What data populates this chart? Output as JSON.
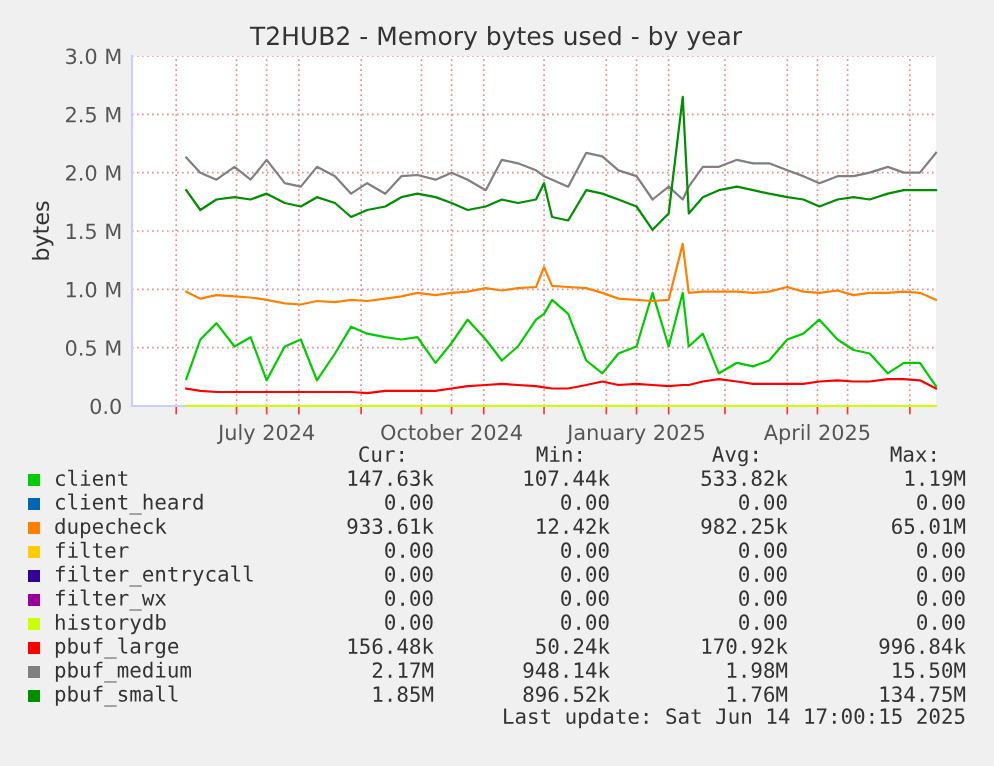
{
  "chart_data": {
    "type": "line",
    "title": "T2HUB2 - Memory bytes used - by year",
    "ylabel": "bytes",
    "x": [
      "2024-06-06",
      "2024-06-13",
      "2024-06-21",
      "2024-06-30",
      "2024-07-08",
      "2024-07-16",
      "2024-07-25",
      "2024-08-02",
      "2024-08-10",
      "2024-08-19",
      "2024-08-27",
      "2024-09-04",
      "2024-09-13",
      "2024-09-21",
      "2024-09-29",
      "2024-10-08",
      "2024-10-16",
      "2024-10-24",
      "2024-11-02",
      "2024-11-10",
      "2024-11-18",
      "2024-11-27",
      "2024-12-01",
      "2024-12-05",
      "2024-12-13",
      "2024-12-22",
      "2024-12-30",
      "2025-01-07",
      "2025-01-16",
      "2025-01-24",
      "2025-02-01",
      "2025-02-08",
      "2025-02-11",
      "2025-02-18",
      "2025-02-26",
      "2025-03-07",
      "2025-03-15",
      "2025-03-23",
      "2025-04-01",
      "2025-04-09",
      "2025-04-17",
      "2025-04-26",
      "2025-05-04",
      "2025-05-12",
      "2025-05-21",
      "2025-05-29",
      "2025-06-06",
      "2025-06-14"
    ],
    "series": [
      {
        "name": "client",
        "color": "#00cc00",
        "values": [
          0.23,
          0.57,
          0.71,
          0.51,
          0.59,
          0.22,
          0.51,
          0.57,
          0.22,
          0.45,
          0.68,
          0.62,
          0.59,
          0.57,
          0.59,
          0.37,
          0.54,
          0.74,
          0.57,
          0.39,
          0.51,
          0.74,
          0.79,
          0.91,
          0.79,
          0.39,
          0.28,
          0.45,
          0.51,
          0.97,
          0.51,
          0.97,
          0.51,
          0.62,
          0.28,
          0.37,
          0.34,
          0.39,
          0.57,
          0.62,
          0.74,
          0.57,
          0.48,
          0.45,
          0.28,
          0.37,
          0.37,
          0.17
        ]
      },
      {
        "name": "client_heard",
        "color": "#0066b3",
        "values": [
          null,
          null,
          null,
          null,
          null,
          null,
          null,
          null,
          null,
          null,
          null,
          null,
          null,
          null,
          null,
          null,
          null,
          null,
          null,
          null,
          null,
          null,
          null,
          null,
          null,
          null,
          null,
          null,
          null,
          null,
          null,
          null,
          null,
          null,
          null,
          null,
          null,
          null,
          null,
          null,
          null,
          null,
          null,
          null,
          null,
          null,
          null,
          null
        ]
      },
      {
        "name": "dupecheck",
        "color": "#ff8000",
        "values": [
          0.98,
          0.92,
          0.95,
          0.94,
          0.93,
          0.91,
          0.88,
          0.87,
          0.9,
          0.89,
          0.91,
          0.9,
          0.92,
          0.94,
          0.97,
          0.95,
          0.97,
          0.98,
          1.01,
          0.99,
          1.01,
          1.02,
          1.19,
          1.03,
          1.02,
          1.01,
          0.97,
          0.92,
          0.91,
          0.9,
          0.91,
          1.39,
          0.97,
          0.98,
          0.98,
          0.98,
          0.97,
          0.98,
          1.02,
          0.98,
          0.97,
          0.99,
          0.95,
          0.97,
          0.97,
          0.98,
          0.97,
          0.91
        ]
      },
      {
        "name": "filter",
        "color": "#ffcc00",
        "values": [
          null,
          null,
          null,
          null,
          null,
          null,
          null,
          null,
          null,
          null,
          null,
          null,
          null,
          null,
          null,
          null,
          null,
          null,
          null,
          null,
          null,
          null,
          null,
          null,
          null,
          null,
          null,
          null,
          null,
          null,
          null,
          null,
          null,
          null,
          null,
          null,
          null,
          null,
          null,
          null,
          null,
          null,
          null,
          null,
          null,
          null,
          null,
          null
        ]
      },
      {
        "name": "filter_entrycall",
        "color": "#330099",
        "values": [
          null,
          null,
          null,
          null,
          null,
          null,
          null,
          null,
          null,
          null,
          null,
          null,
          null,
          null,
          null,
          null,
          null,
          null,
          null,
          null,
          null,
          null,
          null,
          null,
          null,
          null,
          null,
          null,
          null,
          null,
          null,
          null,
          null,
          null,
          null,
          null,
          null,
          null,
          null,
          null,
          null,
          null,
          null,
          null,
          null,
          null,
          null,
          null
        ]
      },
      {
        "name": "filter_wx",
        "color": "#990099",
        "values": [
          null,
          null,
          null,
          null,
          null,
          null,
          null,
          null,
          null,
          null,
          null,
          null,
          null,
          null,
          null,
          null,
          null,
          null,
          null,
          null,
          null,
          null,
          null,
          null,
          null,
          null,
          null,
          null,
          null,
          null,
          null,
          null,
          null,
          null,
          null,
          null,
          null,
          null,
          null,
          null,
          null,
          null,
          null,
          null,
          null,
          null,
          null,
          null
        ]
      },
      {
        "name": "historydb",
        "color": "#ccff00",
        "x": [
          "2024-06-06",
          "2025-06-14"
        ],
        "values": [
          0,
          0
        ]
      },
      {
        "name": "pbuf_large",
        "color": "#ff0000",
        "values": [
          0.15,
          0.13,
          0.12,
          0.12,
          0.12,
          0.12,
          0.12,
          0.12,
          0.12,
          0.12,
          0.12,
          0.11,
          0.13,
          0.13,
          0.13,
          0.13,
          0.15,
          0.17,
          0.18,
          0.19,
          0.18,
          0.17,
          0.16,
          0.15,
          0.15,
          0.18,
          0.21,
          0.18,
          0.19,
          0.18,
          0.17,
          0.18,
          0.18,
          0.21,
          0.23,
          0.21,
          0.19,
          0.19,
          0.19,
          0.19,
          0.21,
          0.22,
          0.21,
          0.21,
          0.23,
          0.23,
          0.22,
          0.15
        ]
      },
      {
        "name": "pbuf_medium",
        "color": "#808080",
        "values": [
          2.13,
          2.0,
          1.94,
          2.05,
          1.94,
          2.11,
          1.91,
          1.88,
          2.05,
          1.97,
          1.82,
          1.91,
          1.82,
          1.97,
          1.98,
          1.94,
          2.0,
          1.94,
          1.85,
          2.11,
          2.08,
          2.02,
          1.97,
          1.94,
          1.88,
          2.17,
          2.14,
          2.02,
          1.97,
          1.77,
          1.88,
          1.77,
          1.88,
          2.05,
          2.05,
          2.11,
          2.08,
          2.08,
          2.02,
          1.97,
          1.91,
          1.97,
          1.97,
          2.0,
          2.05,
          2.0,
          2.0,
          2.17
        ]
      },
      {
        "name": "pbuf_small",
        "color": "#008f00",
        "values": [
          1.85,
          1.68,
          1.77,
          1.79,
          1.77,
          1.82,
          1.74,
          1.71,
          1.79,
          1.74,
          1.62,
          1.68,
          1.71,
          1.79,
          1.82,
          1.79,
          1.74,
          1.68,
          1.71,
          1.77,
          1.74,
          1.77,
          1.91,
          1.62,
          1.59,
          1.85,
          1.82,
          1.77,
          1.71,
          1.51,
          1.65,
          2.65,
          1.65,
          1.79,
          1.85,
          1.88,
          1.85,
          1.82,
          1.79,
          1.77,
          1.71,
          1.77,
          1.79,
          1.77,
          1.82,
          1.85,
          1.85,
          1.85
        ]
      }
    ],
    "xlim": [
      "2024-05-10",
      "2025-06-14"
    ],
    "xticks": [
      {
        "value": "2024-06-01",
        "label": null
      },
      {
        "value": "2024-07-01",
        "label": null
      },
      {
        "value": "2024-07-16",
        "label": "July 2024"
      },
      {
        "value": "2024-08-01",
        "label": null
      },
      {
        "value": "2024-09-01",
        "label": null
      },
      {
        "value": "2024-10-01",
        "label": null
      },
      {
        "value": "2024-10-16",
        "label": "October 2024"
      },
      {
        "value": "2024-11-01",
        "label": null
      },
      {
        "value": "2024-12-01",
        "label": null
      },
      {
        "value": "2025-01-01",
        "label": null
      },
      {
        "value": "2025-01-16",
        "label": "January 2025"
      },
      {
        "value": "2025-02-01",
        "label": null
      },
      {
        "value": "2025-03-01",
        "label": null
      },
      {
        "value": "2025-04-01",
        "label": null
      },
      {
        "value": "2025-04-16",
        "label": "April 2025"
      },
      {
        "value": "2025-05-01",
        "label": null
      },
      {
        "value": "2025-06-01",
        "label": null
      }
    ],
    "ylim": [
      0,
      3.0
    ],
    "yticks": [
      {
        "value": 0,
        "label": "0.0"
      },
      {
        "value": 0.5,
        "label": "0.5 M"
      },
      {
        "value": 1.0,
        "label": "1.0 M"
      },
      {
        "value": 1.5,
        "label": "1.5 M"
      },
      {
        "value": 2.0,
        "label": "2.0 M"
      },
      {
        "value": 2.5,
        "label": "2.5 M"
      },
      {
        "value": 3.0,
        "label": "3.0 M"
      }
    ],
    "grid": true,
    "legend": "bottom",
    "annotations": [
      "Cur:",
      "Min:",
      "Avg:",
      "Max:",
      "147.63k",
      "107.44k",
      "533.82k",
      "1.19M",
      "0.00",
      "0.00",
      "0.00",
      "0.00",
      "933.61k",
      "12.42k",
      "982.25k",
      "65.01M",
      "0.00",
      "0.00",
      "0.00",
      "0.00",
      "0.00",
      "0.00",
      "0.00",
      "0.00",
      "0.00",
      "0.00",
      "0.00",
      "0.00",
      "0.00",
      "0.00",
      "0.00",
      "0.00",
      "156.48k",
      "50.24k",
      "170.92k",
      "996.84k",
      "2.17M",
      "948.14k",
      "1.98M",
      "15.50M",
      "1.85M",
      "896.52k",
      "1.76M",
      "134.75M",
      "Last update: Sat Jun 14 17:00:15 2025"
    ]
  }
}
